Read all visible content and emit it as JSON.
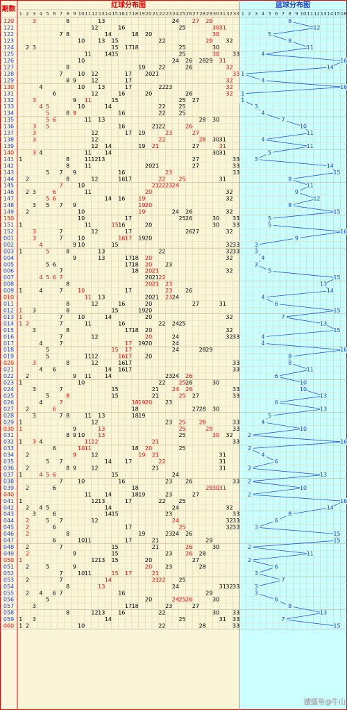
{
  "header": {
    "period_label": "期数",
    "red_title": "红球分布图",
    "blue_title": "蓝球分布图"
  },
  "red_columns": [
    1,
    2,
    3,
    4,
    5,
    6,
    7,
    8,
    9,
    10,
    11,
    12,
    13,
    14,
    15,
    16,
    17,
    18,
    19,
    20,
    21,
    22,
    23,
    24,
    25,
    26,
    27,
    28,
    29,
    30,
    31,
    32,
    33
  ],
  "blue_columns": [
    1,
    2,
    3,
    4,
    5,
    6,
    7,
    8,
    9,
    10,
    11,
    12,
    13,
    14,
    15,
    16
  ],
  "rows": [
    {
      "period": "120",
      "red": [
        3,
        8,
        13,
        24,
        27,
        29
      ],
      "highlight": [
        3,
        27,
        29
      ],
      "blue": 8
    },
    {
      "period": "121",
      "red": [
        12,
        16,
        25,
        30,
        31
      ],
      "highlight": [
        30,
        31
      ],
      "blue": 12
    },
    {
      "period": "122",
      "red": [
        7,
        8,
        14,
        18,
        20,
        30
      ],
      "highlight": [
        30
      ],
      "blue": 5
    },
    {
      "period": "123",
      "red": [
        10,
        13,
        15,
        22,
        29,
        32
      ],
      "highlight": [
        29
      ],
      "blue": 8
    },
    {
      "period": "124",
      "red": [
        2,
        3,
        15,
        17,
        18,
        25,
        30
      ],
      "highlight": [],
      "blue": 11
    },
    {
      "period": "125",
      "red": [
        11,
        14,
        15,
        25,
        30,
        33
      ],
      "highlight": [
        30
      ],
      "blue": 4
    },
    {
      "period": "126",
      "red": [
        10,
        24,
        26,
        28,
        29,
        31
      ],
      "highlight": [
        31
      ],
      "blue": 16
    },
    {
      "period": "127",
      "red": [
        8,
        19,
        22,
        26,
        32
      ],
      "highlight": [
        32
      ],
      "blue": 14
    },
    {
      "period": "128",
      "red": [
        7,
        10,
        12,
        17,
        20,
        21,
        33
      ],
      "highlight": [
        33
      ],
      "blue": 1
    },
    {
      "period": "129",
      "red": [
        8,
        9,
        12,
        17,
        32
      ],
      "highlight": [
        32
      ],
      "blue": 4
    },
    {
      "period": "130",
      "red": [
        4,
        10,
        13,
        17,
        22,
        23,
        32
      ],
      "highlight": [
        32
      ],
      "blue": 16
    },
    {
      "period": "131",
      "red": [
        6,
        12,
        16,
        20,
        26,
        32
      ],
      "highlight": [
        32
      ],
      "blue": 1
    },
    {
      "period": "132",
      "red": [
        3,
        9,
        11,
        15,
        25,
        27
      ],
      "highlight": [
        3,
        11
      ],
      "blue": 1
    },
    {
      "period": "133",
      "red": [
        4,
        5,
        10,
        14,
        22,
        25
      ],
      "highlight": [
        4,
        5
      ],
      "blue": 3
    },
    {
      "period": "134",
      "red": [
        5,
        8,
        9,
        16,
        22,
        25
      ],
      "highlight": [
        5,
        9
      ],
      "blue": 4
    },
    {
      "period": "135",
      "red": [
        5,
        6,
        11,
        13,
        28,
        30
      ],
      "highlight": [
        5,
        6
      ],
      "blue": 7
    },
    {
      "period": "136",
      "red": [
        3,
        5,
        16,
        21,
        22,
        26
      ],
      "highlight": [
        3,
        5,
        26
      ],
      "blue": 10
    },
    {
      "period": "137",
      "red": [
        3,
        12,
        17,
        19,
        23,
        27
      ],
      "highlight": [
        3,
        23,
        27
      ],
      "blue": 11
    },
    {
      "period": "138",
      "red": [
        3,
        12,
        22,
        28,
        30,
        31
      ],
      "highlight": [
        3,
        22,
        28
      ],
      "blue": 4
    },
    {
      "period": "139",
      "red": [
        12,
        14,
        19,
        21,
        27,
        31
      ],
      "highlight": [
        21,
        31
      ],
      "blue": 11
    },
    {
      "period": "140",
      "red": [
        3,
        4,
        11,
        14,
        30,
        31
      ],
      "highlight": [
        3
      ],
      "blue": 5
    },
    {
      "period": "141",
      "red": [
        1,
        8,
        11,
        12,
        13,
        27,
        33
      ],
      "highlight": [],
      "blue": 3
    },
    {
      "period": "142",
      "red": [
        8,
        11,
        20,
        21,
        27,
        33
      ],
      "highlight": [],
      "blue": 14
    },
    {
      "period": "143",
      "red": [
        5,
        7,
        9,
        16,
        23,
        33
      ],
      "highlight": [
        23
      ],
      "blue": 15
    },
    {
      "period": "144",
      "red": [
        2,
        8,
        12,
        16,
        17,
        22,
        25,
        31
      ],
      "highlight": [
        22,
        25
      ],
      "blue": 8
    },
    {
      "period": "145",
      "red": [
        7,
        10,
        21,
        22,
        23,
        24
      ],
      "highlight": [
        7,
        21,
        22,
        23,
        24
      ],
      "blue": 11
    },
    {
      "period": "146",
      "red": [
        2,
        3,
        6,
        11,
        20,
        32
      ],
      "highlight": [
        6,
        20
      ],
      "blue": 9
    },
    {
      "period": "147",
      "red": [
        5,
        6,
        14,
        16,
        19,
        32
      ],
      "highlight": [
        5,
        6,
        19
      ],
      "blue": 12
    },
    {
      "period": "148",
      "red": [
        3,
        5,
        7,
        9,
        19,
        20
      ],
      "highlight": [
        19,
        20
      ],
      "blue": 8
    },
    {
      "period": "149",
      "red": [
        2,
        10,
        19,
        24,
        26,
        32
      ],
      "highlight": [
        19
      ],
      "blue": 15
    },
    {
      "period": "150",
      "red": [
        10,
        17,
        25,
        26,
        30,
        33
      ],
      "highlight": [],
      "blue": 5
    },
    {
      "period": "151",
      "red": [
        1,
        11,
        15,
        16,
        20,
        30,
        33
      ],
      "highlight": [
        15
      ],
      "blue": 5
    },
    {
      "period": "152",
      "red": [
        3,
        7,
        12,
        17,
        26,
        27,
        32
      ],
      "highlight": [
        3
      ],
      "blue": 16
    },
    {
      "period": "001",
      "red": [
        3,
        7,
        10,
        16,
        17,
        19,
        20
      ],
      "highlight": [
        3,
        16,
        17
      ],
      "blue": 9
    },
    {
      "period": "002",
      "red": [
        4,
        9,
        10,
        15,
        32,
        33
      ],
      "highlight": [
        4
      ],
      "blue": 3
    },
    {
      "period": "003",
      "red": [
        1,
        5,
        8,
        13,
        22,
        32,
        33
      ],
      "highlight": [
        5
      ],
      "blue": 3
    },
    {
      "period": "004",
      "red": [
        9,
        13,
        17,
        18,
        20,
        32
      ],
      "highlight": [
        20
      ],
      "blue": 4
    },
    {
      "period": "005",
      "red": [
        5,
        6,
        17,
        18,
        20,
        23
      ],
      "highlight": [
        20
      ],
      "blue": 3
    },
    {
      "period": "006",
      "red": [
        7,
        18,
        20,
        21,
        32
      ],
      "highlight": [
        20,
        21
      ],
      "blue": 5
    },
    {
      "period": "007",
      "red": [
        4,
        5,
        6,
        7,
        20,
        21,
        22
      ],
      "highlight": [
        4,
        5,
        6,
        7,
        22
      ],
      "blue": 15
    },
    {
      "period": "008",
      "red": [
        8,
        20,
        21,
        23
      ],
      "highlight": [
        20,
        21,
        23
      ],
      "blue": 13
    },
    {
      "period": "009",
      "red": [
        1,
        4,
        7,
        10,
        17,
        23,
        26
      ],
      "highlight": [
        10,
        23
      ],
      "blue": 14
    },
    {
      "period": "010",
      "red": [
        11,
        13,
        20,
        21,
        23,
        24
      ],
      "highlight": [
        11,
        23
      ],
      "blue": 4
    },
    {
      "period": "011",
      "red": [
        8,
        12,
        16,
        20,
        27,
        31
      ],
      "highlight": [],
      "blue": 6
    },
    {
      "period": "012",
      "red": [
        1,
        3,
        8,
        15,
        19,
        20
      ],
      "highlight": [
        1
      ],
      "blue": 15
    },
    {
      "period": "013",
      "red": [
        1,
        7,
        10,
        14,
        20,
        32
      ],
      "highlight": [
        1
      ],
      "blue": 7
    },
    {
      "period": "014",
      "red": [
        1,
        2,
        7,
        11,
        16,
        22,
        24,
        25
      ],
      "highlight": [
        1,
        2
      ],
      "blue": 13
    },
    {
      "period": "015",
      "red": [
        3,
        8,
        17,
        18,
        20,
        32
      ],
      "highlight": [],
      "blue": 15
    },
    {
      "period": "016",
      "red": [
        7,
        12,
        20,
        24,
        32,
        33
      ],
      "highlight": [
        20
      ],
      "blue": 4
    },
    {
      "period": "017",
      "red": [
        4,
        7,
        17,
        19,
        20,
        24
      ],
      "highlight": [
        17
      ],
      "blue": 4
    },
    {
      "period": "018",
      "red": [
        5,
        15,
        17,
        24,
        28,
        29
      ],
      "highlight": [
        15,
        17
      ],
      "blue": 16
    },
    {
      "period": "019",
      "red": [
        5,
        11,
        12,
        16,
        17,
        20
      ],
      "highlight": [
        16,
        17
      ],
      "blue": 8
    },
    {
      "period": "020",
      "red": [
        3,
        8,
        12,
        16,
        17,
        33
      ],
      "highlight": [
        3
      ],
      "blue": 8
    },
    {
      "period": "021",
      "red": [
        4,
        6,
        14,
        16,
        17,
        33
      ],
      "highlight": [],
      "blue": 11
    },
    {
      "period": "022",
      "red": [
        2,
        9,
        11,
        14,
        23,
        24,
        26
      ],
      "highlight": [
        26
      ],
      "blue": 6
    },
    {
      "period": "023",
      "red": [
        1,
        10,
        22,
        25,
        26,
        30
      ],
      "highlight": [
        25
      ],
      "blue": 10
    },
    {
      "period": "024",
      "red": [
        3,
        7,
        15,
        21,
        24,
        26,
        33
      ],
      "highlight": [
        24,
        26
      ],
      "blue": 10
    },
    {
      "period": "025",
      "red": [
        5,
        8,
        15,
        21,
        25,
        27,
        33
      ],
      "highlight": [
        8,
        25
      ],
      "blue": 13
    },
    {
      "period": "026",
      "red": [
        4,
        7,
        18,
        19,
        20,
        23
      ],
      "highlight": [
        7,
        18,
        19,
        20
      ],
      "blue": 6
    },
    {
      "period": "027",
      "red": [
        2,
        6,
        18,
        27,
        28,
        30
      ],
      "highlight": [
        6
      ],
      "blue": 13
    },
    {
      "period": "028",
      "red": [
        3,
        7,
        8,
        11,
        13,
        18,
        19
      ],
      "highlight": [],
      "blue": 5
    },
    {
      "period": "029",
      "red": [
        1,
        12,
        23,
        25,
        28,
        33
      ],
      "highlight": [
        25,
        28
      ],
      "blue": 4
    },
    {
      "period": "030",
      "red": [
        1,
        9,
        13,
        25,
        29,
        33
      ],
      "highlight": [
        1,
        13,
        25,
        29
      ],
      "blue": 10
    },
    {
      "period": "031",
      "red": [
        8,
        9,
        10,
        13,
        25,
        30,
        32
      ],
      "highlight": [
        13,
        30
      ],
      "blue": 2
    },
    {
      "period": "032",
      "red": [
        1,
        3,
        4,
        11,
        12,
        21,
        33
      ],
      "highlight": [
        3,
        11,
        12,
        21
      ],
      "blue": 16
    },
    {
      "period": "033",
      "red": [
        6,
        10,
        11,
        18,
        20,
        25
      ],
      "highlight": [
        10,
        11,
        20
      ],
      "blue": 2
    },
    {
      "period": "034",
      "red": [
        2,
        9,
        12,
        19,
        21,
        31
      ],
      "highlight": [
        9,
        19,
        21
      ],
      "blue": 4
    },
    {
      "period": "035",
      "red": [
        5,
        7,
        14,
        17,
        22,
        31
      ],
      "highlight": [
        22
      ],
      "blue": 6
    },
    {
      "period": "036",
      "red": [
        2,
        8,
        9,
        12,
        21,
        31
      ],
      "highlight": [],
      "blue": 2
    },
    {
      "period": "037",
      "red": [
        1,
        4,
        5,
        6,
        15,
        24
      ],
      "highlight": [
        4,
        5,
        6
      ],
      "blue": 13
    },
    {
      "period": "038",
      "red": [
        7,
        10,
        16,
        23,
        26,
        33
      ],
      "highlight": [],
      "blue": 2
    },
    {
      "period": "039",
      "red": [
        2,
        6,
        18,
        29,
        30,
        31
      ],
      "highlight": [
        29,
        30,
        31
      ],
      "blue": 10
    },
    {
      "period": "040",
      "red": [
        11,
        14,
        18,
        19,
        23,
        27
      ],
      "highlight": [],
      "blue": 2
    },
    {
      "period": "041",
      "red": [
        1,
        12,
        13,
        17,
        22,
        25
      ],
      "highlight": [],
      "blue": 16
    },
    {
      "period": "042",
      "red": [
        2,
        4,
        5,
        14,
        24,
        32
      ],
      "highlight": [],
      "blue": 14
    },
    {
      "period": "043",
      "red": [
        3,
        6,
        14,
        15,
        23,
        33
      ],
      "highlight": [],
      "blue": 8
    },
    {
      "period": "044",
      "red": [
        2,
        5,
        7,
        12,
        24,
        32,
        33
      ],
      "highlight": [
        2,
        24
      ],
      "blue": 6
    },
    {
      "period": "045",
      "red": [
        2,
        6,
        17,
        25,
        32,
        33
      ],
      "highlight": [
        2,
        25
      ],
      "blue": 3
    },
    {
      "period": "046",
      "red": [
        2,
        8,
        19,
        23,
        24,
        26
      ],
      "highlight": [
        2
      ],
      "blue": 15
    },
    {
      "period": "047",
      "red": [
        6,
        10,
        11,
        17,
        21,
        29
      ],
      "highlight": [],
      "blue": 15
    },
    {
      "period": "048",
      "red": [
        2,
        7,
        15,
        21,
        26,
        30
      ],
      "highlight": [
        26
      ],
      "blue": 2
    },
    {
      "period": "049",
      "red": [
        2,
        9,
        15,
        23,
        26,
        28
      ],
      "highlight": [
        2,
        26
      ],
      "blue": 11
    },
    {
      "period": "050",
      "red": [
        1,
        12,
        13,
        15,
        20,
        27
      ],
      "highlight": [
        1
      ],
      "blue": 2
    },
    {
      "period": "051",
      "red": [
        2,
        5,
        9,
        20,
        23,
        28
      ],
      "highlight": [
        20
      ],
      "blue": 6
    },
    {
      "period": "052",
      "red": [
        7,
        10,
        11,
        15,
        17,
        21
      ],
      "highlight": [
        15,
        17,
        21
      ],
      "blue": 3
    },
    {
      "period": "053",
      "red": [
        2,
        7,
        14,
        21,
        22,
        25
      ],
      "highlight": [
        14,
        21,
        22
      ],
      "blue": 7
    },
    {
      "period": "054",
      "red": [
        8,
        13,
        24,
        31,
        32,
        33
      ],
      "highlight": [
        13
      ],
      "blue": 3
    },
    {
      "period": "055",
      "red": [
        2,
        4,
        6,
        7,
        16,
        29
      ],
      "highlight": [],
      "blue": 3
    },
    {
      "period": "056",
      "red": [
        5,
        20,
        24,
        25,
        26,
        30
      ],
      "highlight": [
        24,
        25,
        26
      ],
      "blue": 6
    },
    {
      "period": "057",
      "red": [
        3,
        17,
        18,
        23,
        27
      ],
      "highlight": [],
      "blue": 8
    },
    {
      "period": "058",
      "red": [
        8,
        12,
        13,
        16,
        22,
        30,
        33
      ],
      "highlight": [],
      "blue": 13
    },
    {
      "period": "059",
      "red": [
        1,
        3,
        14,
        25,
        31,
        33
      ],
      "highlight": [],
      "blue": 7
    },
    {
      "period": "060",
      "red": [
        1,
        2,
        10,
        22,
        28,
        33
      ],
      "highlight": [],
      "blue": 15
    }
  ],
  "watermark": "搜狐号@牛山"
}
